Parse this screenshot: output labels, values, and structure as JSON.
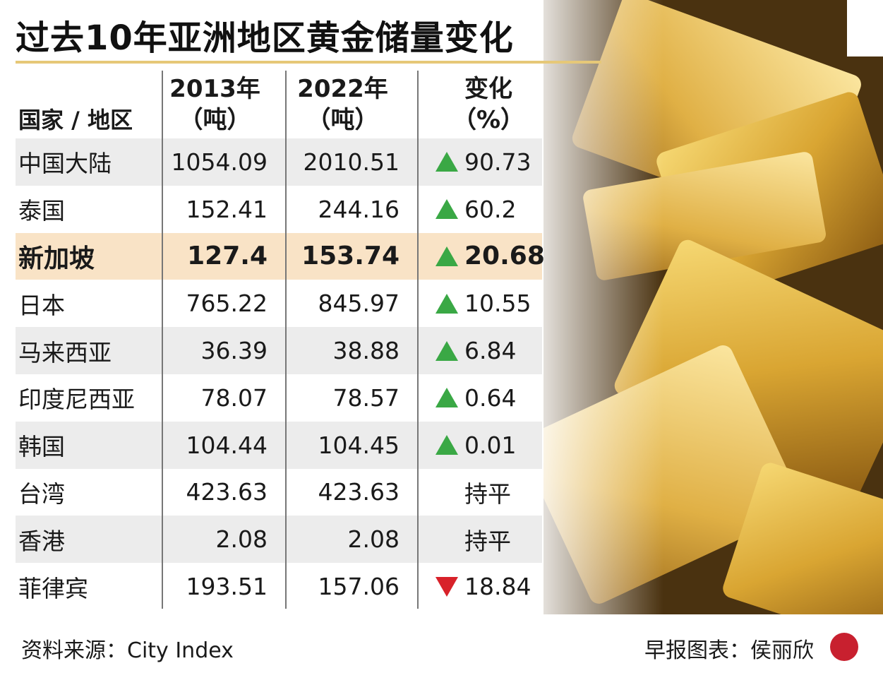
{
  "header": {
    "title": "过去10年亚洲地区黄金储量变化"
  },
  "table": {
    "columns": [
      [
        "国家 / 地区"
      ],
      [
        "2013年",
        "（吨）"
      ],
      [
        "2022年",
        "（吨）"
      ],
      [
        "变化",
        "（%）"
      ]
    ],
    "rows": [
      [
        "中国大陆",
        "1054.09",
        "2010.51",
        "90.73"
      ],
      [
        "泰国",
        "152.41",
        "244.16",
        "60.2"
      ],
      [
        "新加坡",
        "127.4",
        "153.74",
        "20.68"
      ],
      [
        "日本",
        "765.22",
        "845.97",
        "10.55"
      ],
      [
        "马来西亚",
        "36.39",
        "38.88",
        "6.84"
      ],
      [
        "印度尼西亚",
        "78.07",
        "78.57",
        "0.64"
      ],
      [
        "韩国",
        "104.44",
        "104.45",
        "0.01"
      ],
      [
        "台湾",
        "423.63",
        "423.63",
        "持平"
      ],
      [
        "香港",
        "2.08",
        "2.08",
        "持平"
      ],
      [
        "菲律宾",
        "193.51",
        "157.06",
        "18.84"
      ]
    ]
  },
  "footer": {
    "source": "资料来源：City Index",
    "credit": "早报图表：侯丽欣"
  }
}
